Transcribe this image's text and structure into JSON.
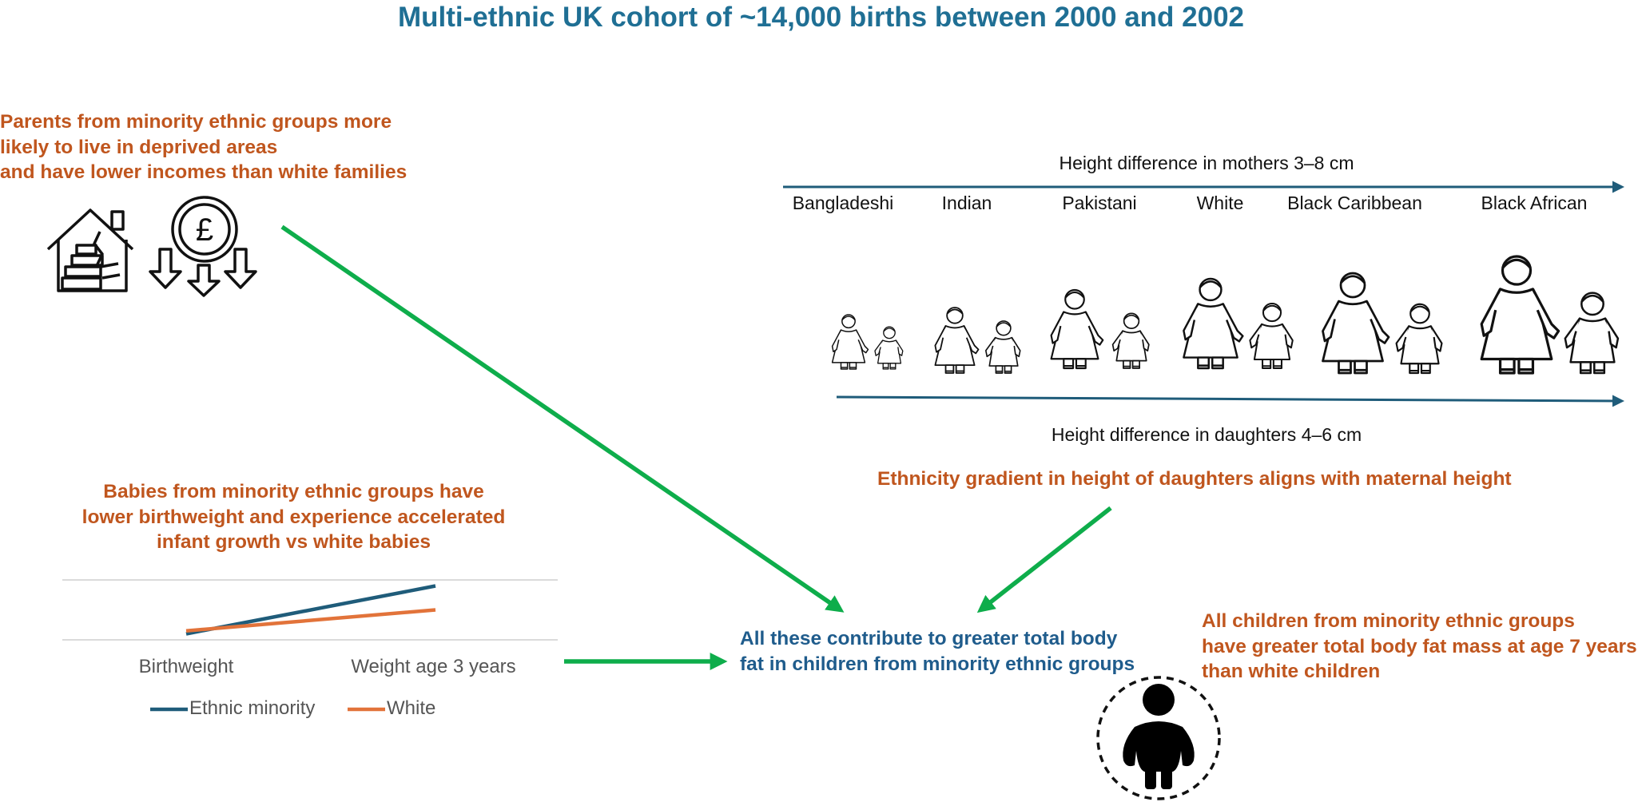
{
  "title": "Multi-ethnic UK cohort of ~14,000 births between 2000 and 2002",
  "deprivation": {
    "lines": [
      "Parents from minority ethnic groups more",
      "likely to live in deprived areas",
      "and have lower incomes than white families"
    ],
    "icons": [
      "damaged-house-icon",
      "pound-coin-icon",
      "down-arrow-icon"
    ]
  },
  "heights": {
    "mothers_label": "Height difference in mothers 3–8 cm",
    "daughters_label": "Height difference in daughters 4–6 cm",
    "groups": [
      "Bangladeshi",
      "Indian",
      "Pakistani",
      "White",
      "Black Caribbean",
      "Black African"
    ],
    "conclusion": "Ethnicity gradient in height of daughters aligns with maternal height"
  },
  "growth": {
    "lines": [
      "Babies from minority ethnic groups have",
      "lower birthweight and experience accelerated",
      "infant growth vs white babies"
    ]
  },
  "chart_data": {
    "type": "line",
    "categories": [
      "Birthweight",
      "Weight age 3 years"
    ],
    "series": [
      {
        "name": "Ethnic minority",
        "values": [
          0.1,
          0.9
        ],
        "color": "#1f5c7a"
      },
      {
        "name": "White",
        "values": [
          0.15,
          0.5
        ],
        "color": "#e2733a"
      }
    ],
    "ylim": [
      0,
      1
    ],
    "legend": "bottom"
  },
  "summary": {
    "lines": [
      "All these contribute to greater total body",
      "fat in children from minority ethnic groups"
    ]
  },
  "bodyfat": {
    "lines": [
      "All children from minority ethnic groups",
      "have greater total body fat mass at age 7 years",
      "than white children"
    ],
    "icon": "child-silhouette-icon"
  },
  "colors": {
    "title": "#1f6f94",
    "orange_text": "#c0561e",
    "blue_text": "#1f5c8c",
    "green_arrow": "#0ead4b",
    "axis_arrow": "#1f5c7a"
  }
}
